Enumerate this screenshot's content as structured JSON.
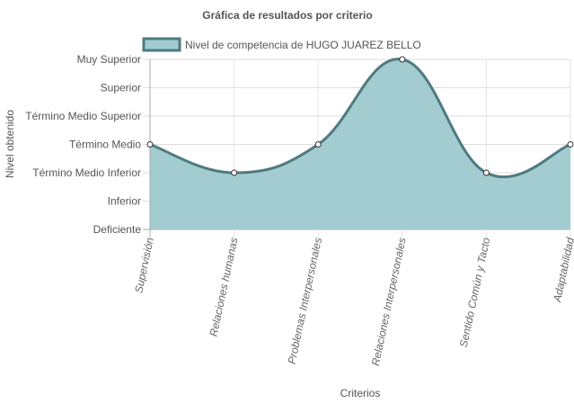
{
  "chart_data": {
    "type": "area",
    "title": "Gráfica de resultados por criterio",
    "xlabel": "Criterios",
    "ylabel": "Nivel obtenido",
    "levels": [
      "Deficiente",
      "Inferior",
      "Término Medio Inferior",
      "Término Medio",
      "Término Medio Superior",
      "Superior",
      "Muy Superior"
    ],
    "categories": [
      "Supervisión",
      "Relaciones humanas",
      "Problemas Interpersonales",
      "Relaciones Interpersonales",
      "Sentido Común y Tacto",
      "Adaptabilidad"
    ],
    "series": [
      {
        "name": "Nivel de competencia de HUGO JUAREZ BELLO",
        "values": [
          "Término Medio",
          "Término Medio Inferior",
          "Término Medio",
          "Muy Superior",
          "Término Medio Inferior",
          "Término Medio"
        ],
        "fill_color": "#a2cccf",
        "line_color": "#4f7a80"
      }
    ],
    "grid": true,
    "legend": "top"
  }
}
